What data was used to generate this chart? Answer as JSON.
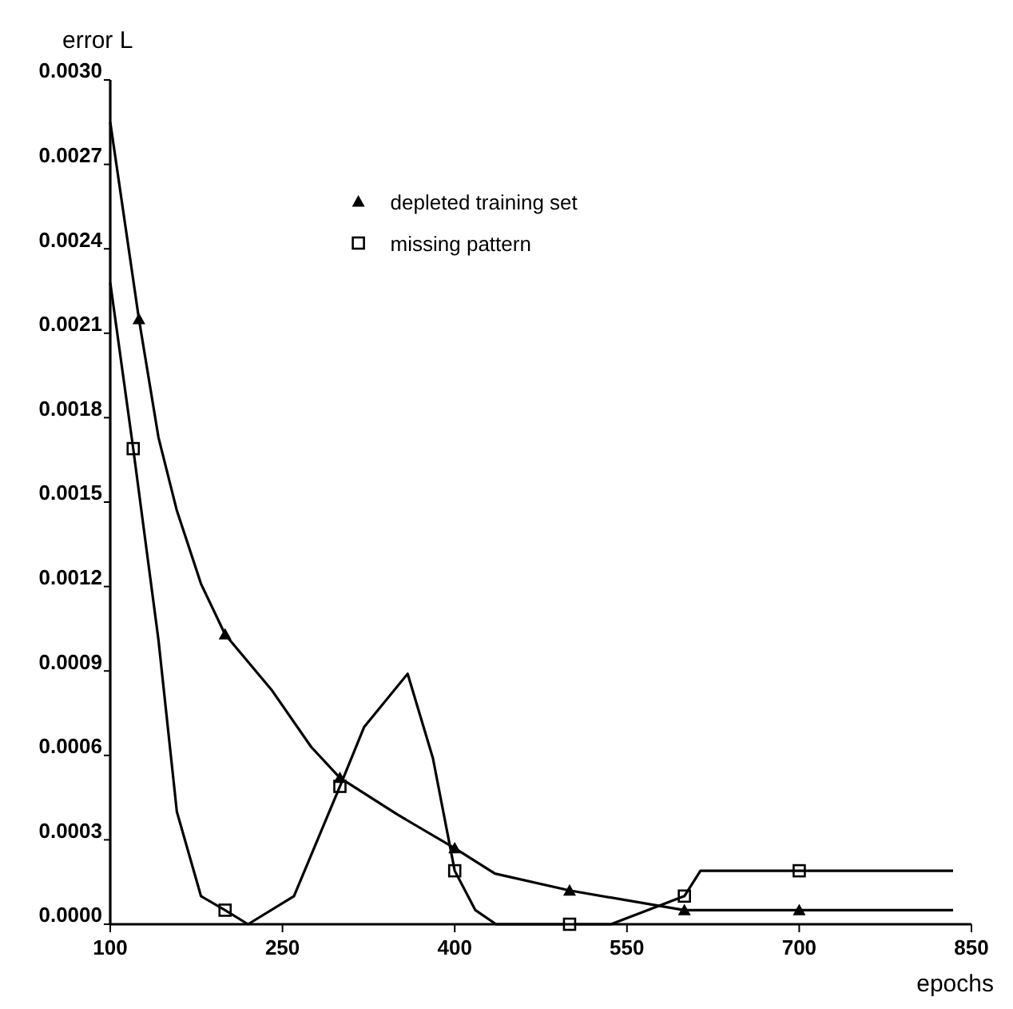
{
  "chart_data": {
    "type": "line",
    "xlabel": "epochs",
    "ylabel": "error L",
    "xlim": [
      100,
      850
    ],
    "xticks": [
      100,
      250,
      400,
      550,
      700,
      850
    ],
    "ylim": [
      0,
      0.003
    ],
    "yticks": [
      {
        "value": 0,
        "label": "0.0000"
      },
      {
        "value": 0.0003,
        "label": "0.0003"
      },
      {
        "value": 0.0006,
        "label": "0.0006"
      },
      {
        "value": 0.0009,
        "label": "0.0009"
      },
      {
        "value": 0.0012,
        "label": "0.0012"
      },
      {
        "value": 0.0015,
        "label": "0.0015"
      },
      {
        "value": 0.0018,
        "label": "0.0018"
      },
      {
        "value": 0.0021,
        "label": "0.0021"
      },
      {
        "value": 0.0024,
        "label": "0.0024"
      },
      {
        "value": 0.0027,
        "label": "0.0027"
      },
      {
        "value": 0.003,
        "label": "0.0030"
      }
    ],
    "grid": false,
    "legend": "top",
    "line_style": "solid",
    "series": [
      {
        "color": "#000000",
        "marker": "none",
        "x": [
          100,
          125,
          142,
          158,
          179,
          200,
          241,
          275,
          300,
          350,
          400,
          435,
          500,
          600,
          700,
          834
        ],
        "values": [
          0.00285,
          0.00215,
          0.00173,
          0.00147,
          0.00121,
          0.00103,
          0.00083,
          0.00063,
          0.00052,
          0.00039,
          0.00027,
          0.00018,
          0.00012,
          5e-05,
          5e-05,
          5e-05
        ]
      },
      {
        "color": "#000000",
        "marker": "none",
        "x": [
          100,
          120,
          142,
          158,
          179,
          200,
          220,
          260,
          300,
          321,
          359,
          381,
          400,
          418,
          436,
          500,
          536,
          600,
          614,
          700,
          834
        ],
        "values": [
          0.00228,
          0.00169,
          0.00101,
          0.0004,
          0.0001,
          5e-05,
          0,
          0.0001,
          0.00049,
          0.0007,
          0.00089,
          0.00059,
          0.00019,
          5e-05,
          0,
          0,
          0,
          0.0001,
          0.00019,
          0.00019,
          0.00019
        ]
      },
      {
        "type": "scatter",
        "name": "depleted training set",
        "color": "#000000",
        "marker": "triangle",
        "x": [
          125,
          200,
          300,
          400,
          500,
          600,
          700
        ],
        "values": [
          0.00215,
          0.00103,
          0.00052,
          0.00027,
          0.00012,
          5e-05,
          5e-05
        ]
      },
      {
        "type": "scatter",
        "name": "missing pattern",
        "color": "#000000",
        "marker": "square",
        "x": [
          120,
          200,
          300,
          400,
          500,
          600,
          700
        ],
        "values": [
          0.00169,
          5e-05,
          0.00049,
          0.00019,
          0,
          0.0001,
          0.00019
        ]
      }
    ]
  }
}
